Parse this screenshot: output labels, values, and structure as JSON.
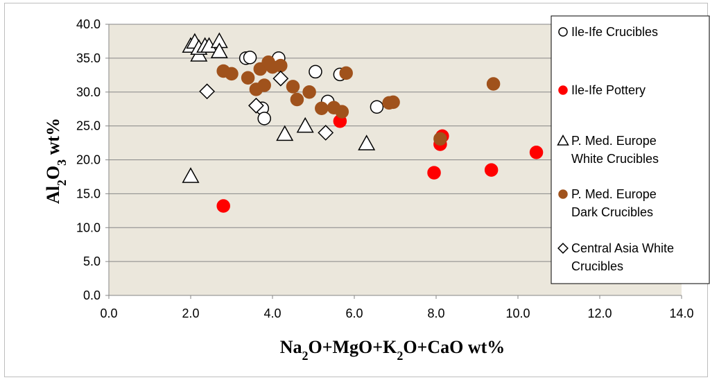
{
  "chart_data": {
    "type": "scatter",
    "title": "",
    "xlabel": "Na2O+MgO+K2O+CaO wt%",
    "ylabel": "Al2O3 wt%",
    "xlim": [
      0,
      14
    ],
    "ylim": [
      0,
      40
    ],
    "x_ticks": [
      "0.0",
      "2.0",
      "4.0",
      "6.0",
      "8.0",
      "10.0",
      "12.0",
      "14.0"
    ],
    "y_ticks": [
      "0.0",
      "5.0",
      "10.0",
      "15.0",
      "20.0",
      "25.0",
      "30.0",
      "35.0",
      "40.0"
    ],
    "grid": "horizontal",
    "legend_position": "right",
    "series": [
      {
        "name": "Ile-Ife Crucibles",
        "marker": "circle",
        "fill": "#ffffff",
        "stroke": "#000000",
        "points": [
          [
            3.35,
            35.0
          ],
          [
            3.45,
            35.1
          ],
          [
            4.15,
            35.0
          ],
          [
            5.05,
            33.0
          ],
          [
            5.65,
            32.6
          ],
          [
            5.35,
            28.6
          ],
          [
            3.75,
            27.6
          ],
          [
            3.8,
            26.1
          ],
          [
            6.55,
            27.8
          ]
        ]
      },
      {
        "name": "Ile-Ife Pottery",
        "marker": "circle",
        "fill": "#ff0000",
        "stroke": "#ff0000",
        "points": [
          [
            2.8,
            13.2
          ],
          [
            5.65,
            25.7
          ],
          [
            7.95,
            18.1
          ],
          [
            8.1,
            22.3
          ],
          [
            8.15,
            23.5
          ],
          [
            9.35,
            18.5
          ],
          [
            10.45,
            21.1
          ]
        ]
      },
      {
        "name": "P. Med. Europe White Crucibles",
        "marker": "triangle",
        "fill": "#ffffff",
        "stroke": "#000000",
        "points": [
          [
            2.0,
            36.8
          ],
          [
            2.1,
            37.4
          ],
          [
            2.2,
            35.5
          ],
          [
            2.2,
            36.5
          ],
          [
            2.35,
            36.8
          ],
          [
            2.45,
            36.8
          ],
          [
            2.7,
            37.5
          ],
          [
            2.7,
            36.0
          ],
          [
            2.0,
            17.6
          ],
          [
            4.3,
            23.8
          ],
          [
            4.8,
            25.0
          ],
          [
            6.3,
            22.4
          ]
        ]
      },
      {
        "name": "P. Med. Europe Dark Crucibles",
        "marker": "circle",
        "fill": "#a0521c",
        "stroke": "#a0521c",
        "points": [
          [
            2.8,
            33.1
          ],
          [
            3.0,
            32.7
          ],
          [
            3.4,
            32.1
          ],
          [
            3.6,
            30.4
          ],
          [
            3.7,
            33.4
          ],
          [
            3.8,
            31.0
          ],
          [
            3.9,
            34.4
          ],
          [
            4.0,
            33.7
          ],
          [
            4.2,
            33.9
          ],
          [
            4.5,
            30.8
          ],
          [
            4.6,
            28.9
          ],
          [
            4.9,
            30.0
          ],
          [
            5.2,
            27.6
          ],
          [
            5.5,
            27.7
          ],
          [
            5.7,
            27.1
          ],
          [
            5.8,
            32.8
          ],
          [
            6.85,
            28.4
          ],
          [
            6.95,
            28.5
          ],
          [
            8.1,
            23.1
          ],
          [
            9.4,
            31.2
          ]
        ]
      },
      {
        "name": "Central Asia White Crucibles",
        "marker": "diamond",
        "fill": "#ffffff",
        "stroke": "#000000",
        "points": [
          [
            2.4,
            30.1
          ],
          [
            3.6,
            28.0
          ],
          [
            4.2,
            32.0
          ],
          [
            5.3,
            24.0
          ]
        ]
      }
    ]
  }
}
